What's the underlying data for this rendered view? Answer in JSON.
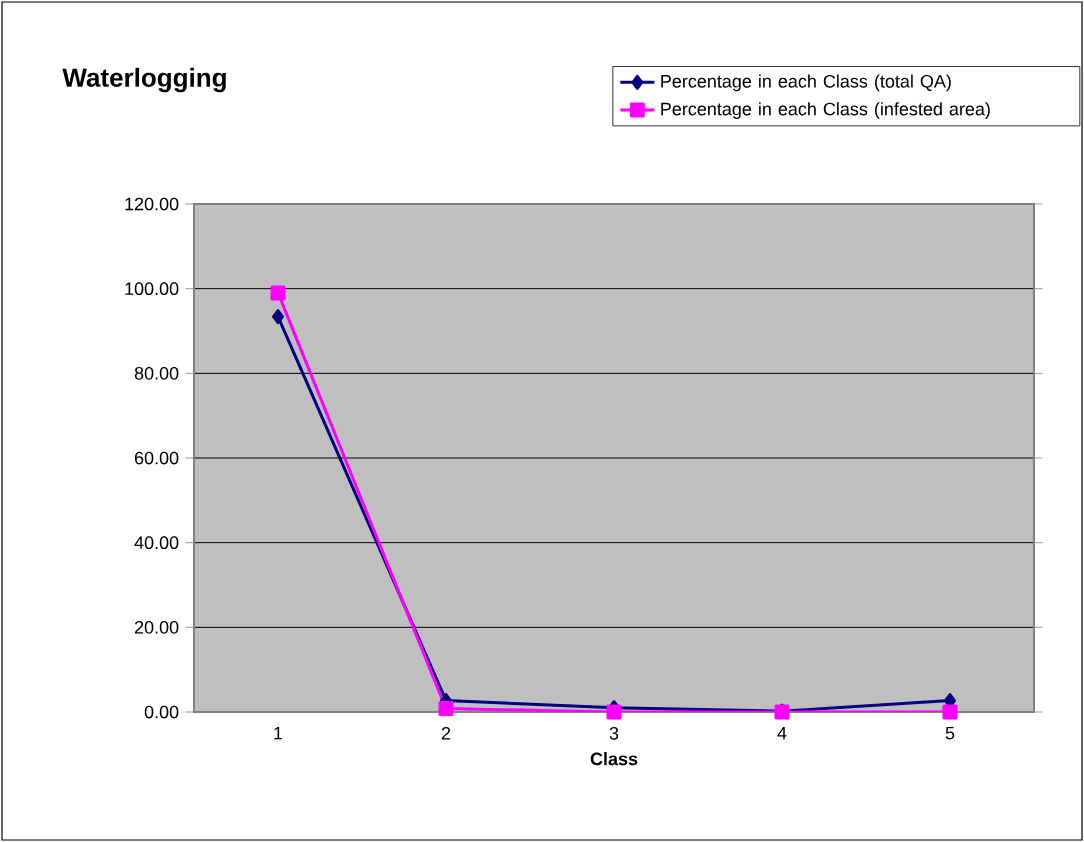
{
  "chart_data": {
    "type": "line",
    "title": "Waterlogging",
    "xlabel": "Class",
    "categories": [
      "1",
      "2",
      "3",
      "4",
      "5"
    ],
    "series": [
      {
        "name": "Percentage in each Class (total QA)",
        "color": "#000080",
        "marker": "diamond",
        "values": [
          93.4,
          2.7,
          1.0,
          0.2,
          2.7
        ]
      },
      {
        "name": "Percentage in each Class (infested area)",
        "color": "#ff00ff",
        "marker": "square",
        "values": [
          99.0,
          0.8,
          0.0,
          0.0,
          0.0
        ]
      }
    ],
    "ylim": [
      0,
      120
    ],
    "yticks": [
      {
        "value": 0,
        "label": "0.00"
      },
      {
        "value": 20,
        "label": "20.00"
      },
      {
        "value": 40,
        "label": "40.00"
      },
      {
        "value": 60,
        "label": "60.00"
      },
      {
        "value": 80,
        "label": "80.00"
      },
      {
        "value": 100,
        "label": "100.00"
      },
      {
        "value": 120,
        "label": "120.00"
      }
    ],
    "grid": "y",
    "legend": "top right",
    "line_style": "solid"
  }
}
